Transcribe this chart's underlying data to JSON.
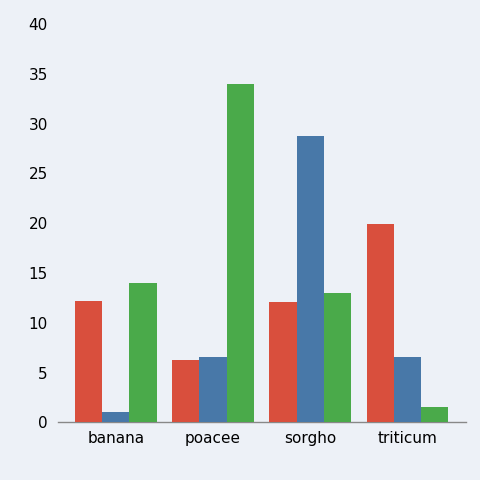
{
  "categories": [
    "banana",
    "poacee",
    "sorgho",
    "triticum"
  ],
  "series": [
    {
      "label": "red",
      "color": "#d94f3d",
      "values": [
        12.2,
        6.3,
        12.1,
        19.9
      ]
    },
    {
      "label": "blue",
      "color": "#4878a8",
      "values": [
        1.0,
        6.6,
        28.8,
        6.6
      ]
    },
    {
      "label": "green",
      "color": "#4aaa4a",
      "values": [
        14.0,
        34.0,
        13.0,
        1.5
      ]
    }
  ],
  "ylim": [
    0,
    40
  ],
  "yticks": [
    0,
    5,
    10,
    15,
    20,
    25,
    30,
    35,
    40
  ],
  "background_color": "#edf1f7",
  "bar_width": 0.28,
  "tick_fontsize": 11
}
